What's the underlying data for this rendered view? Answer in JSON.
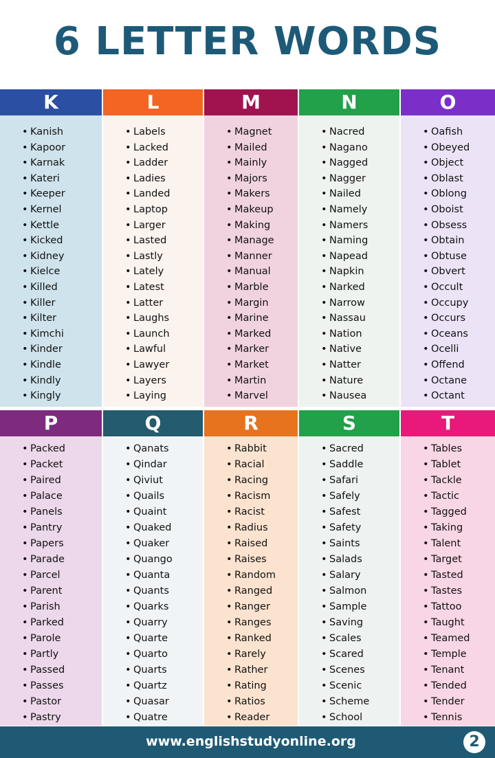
{
  "title": "6 LETTER WORDS",
  "sections": [
    {
      "letter": "K",
      "words": [
        "Kanish",
        "Kapoor",
        "Karnak",
        "Kateri",
        "Keeper",
        "Kernel",
        "Kettle",
        "Kicked",
        "Kidney",
        "Kielce",
        "Killed",
        "Killer",
        "Kilter",
        "Kimchi",
        "Kinder",
        "Kindle",
        "Kindly",
        "Kingly"
      ]
    },
    {
      "letter": "L",
      "words": [
        "Labels",
        "Lacked",
        "Ladder",
        "Ladies",
        "Landed",
        "Laptop",
        "Larger",
        "Lasted",
        "Lastly",
        "Lately",
        "Latest",
        "Latter",
        "Laughs",
        "Launch",
        "Lawful",
        "Lawyer",
        "Layers",
        "Laying"
      ]
    },
    {
      "letter": "M",
      "words": [
        "Magnet",
        "Mailed",
        "Mainly",
        "Majors",
        "Makers",
        "Makeup",
        "Making",
        "Manage",
        "Manner",
        "Manual",
        "Marble",
        "Margin",
        "Marine",
        "Marked",
        "Marker",
        "Market",
        "Martin",
        "Marvel"
      ]
    },
    {
      "letter": "N",
      "words": [
        "Nacred",
        "Nagano",
        "Nagged",
        "Nagger",
        "Nailed",
        "Namely",
        "Namers",
        "Naming",
        "Napead",
        "Napkin",
        "Narked",
        "Narrow",
        "Nassau",
        "Nation",
        "Native",
        "Natter",
        "Nature",
        "Nausea"
      ]
    },
    {
      "letter": "O",
      "words": [
        "Oafish",
        "Obeyed",
        "Object",
        "Oblast",
        "Oblong",
        "Oboist",
        "Obsess",
        "Obtain",
        "Obtuse",
        "Obvert",
        "Occult",
        "Occupy",
        "Occurs",
        "Oceans",
        "Ocelli",
        "Offend",
        "Octane",
        "Octant"
      ]
    },
    {
      "letter": "P",
      "words": [
        "Packed",
        "Packet",
        "Paired",
        "Palace",
        "Panels",
        "Pantry",
        "Papers",
        "Parade",
        "Parcel",
        "Parent",
        "Parish",
        "Parked",
        "Parole",
        "Partly",
        "Passed",
        "Passes",
        "Pastor",
        "Pastry"
      ]
    },
    {
      "letter": "Q",
      "words": [
        "Qanats",
        "Qindar",
        "Qiviut",
        "Quails",
        "Quaint",
        "Quaked",
        "Quaker",
        "Quango",
        "Quanta",
        "Quants",
        "Quarks",
        "Quarry",
        "Quarte",
        "Quarto",
        "Quarts",
        "Quartz",
        "Quasar",
        "Quatre"
      ]
    },
    {
      "letter": "R",
      "words": [
        "Rabbit",
        "Racial",
        "Racing",
        "Racism",
        "Racist",
        "Radius",
        "Raised",
        "Raises",
        "Random",
        "Ranged",
        "Ranger",
        "Ranges",
        "Ranked",
        "Rarely",
        "Rather",
        "Rating",
        "Ratios",
        "Reader"
      ]
    },
    {
      "letter": "S",
      "words": [
        "Sacred",
        "Saddle",
        "Safari",
        "Safely",
        "Safest",
        "Safety",
        "Saints",
        "Salads",
        "Salary",
        "Salmon",
        "Sample",
        "Saving",
        "Scales",
        "Scared",
        "Scenes",
        "Scenic",
        "Scheme",
        "School"
      ]
    },
    {
      "letter": "T",
      "words": [
        "Tables",
        "Tablet",
        "Tackle",
        "Tactic",
        "Tagged",
        "Taking",
        "Talent",
        "Target",
        "Tasted",
        "Tastes",
        "Tattoo",
        "Taught",
        "Teamed",
        "Temple",
        "Tenant",
        "Tended",
        "Tender",
        "Tennis"
      ]
    }
  ],
  "footer": {
    "url": "www.englishstudyonline.org",
    "page": "2"
  }
}
